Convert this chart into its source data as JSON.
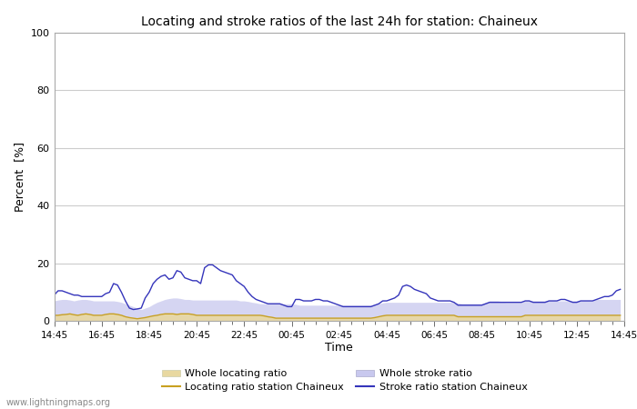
{
  "title": "Locating and stroke ratios of the last 24h for station: Chaineux",
  "xlabel": "Time",
  "ylabel": "Percent  [%]",
  "ylim": [
    0,
    100
  ],
  "yticks": [
    0,
    20,
    40,
    60,
    80,
    100
  ],
  "xtick_labels": [
    "14:45",
    "16:45",
    "18:45",
    "20:45",
    "22:45",
    "00:45",
    "02:45",
    "04:45",
    "06:45",
    "08:45",
    "10:45",
    "12:45",
    "14:45"
  ],
  "watermark": "www.lightningmaps.org",
  "background_color": "#ffffff",
  "grid_color": "#cccccc",
  "whole_locating_fill_color": "#e8d8a0",
  "whole_stroke_fill_color": "#c8c8ee",
  "locating_line_color": "#c8a020",
  "stroke_line_color": "#3535bb",
  "whole_locating": [
    2.0,
    2.0,
    2.2,
    2.3,
    2.5,
    2.2,
    2.0,
    2.3,
    2.5,
    2.3,
    2.0,
    2.0,
    2.0,
    2.3,
    2.5,
    2.5,
    2.3,
    2.0,
    1.5,
    1.2,
    1.0,
    0.8,
    1.0,
    1.2,
    1.5,
    1.8,
    2.0,
    2.3,
    2.5,
    2.5,
    2.5,
    2.3,
    2.5,
    2.5,
    2.5,
    2.3,
    2.0,
    2.0,
    2.0,
    2.0,
    2.0,
    2.0,
    2.0,
    2.0,
    2.0,
    2.0,
    2.0,
    2.0,
    2.0,
    2.0,
    2.0,
    2.0,
    2.0,
    1.8,
    1.5,
    1.3,
    1.0,
    1.0,
    1.0,
    1.0,
    1.0,
    1.0,
    1.0,
    1.0,
    1.0,
    1.0,
    1.0,
    1.0,
    1.0,
    1.0,
    1.0,
    1.0,
    1.0,
    1.0,
    1.0,
    1.0,
    1.0,
    1.0,
    1.0,
    1.0,
    1.0,
    1.2,
    1.5,
    1.8,
    2.0,
    2.0,
    2.0,
    2.0,
    2.0,
    2.0,
    2.0,
    2.0,
    2.0,
    2.0,
    2.0,
    2.0,
    2.0,
    2.0,
    2.0,
    2.0,
    2.0,
    2.0,
    1.5,
    1.5,
    1.5,
    1.5,
    1.5,
    1.5,
    1.5,
    1.5,
    1.5,
    1.5,
    1.5,
    1.5,
    1.5,
    1.5,
    1.5,
    1.5,
    1.5,
    2.0,
    2.0,
    2.0,
    2.0,
    2.0,
    2.0,
    2.0,
    2.0,
    2.0,
    2.0,
    2.0,
    2.0,
    2.0,
    2.0,
    2.0,
    2.0,
    2.0,
    2.0,
    2.0,
    2.0,
    2.0,
    2.0,
    2.0,
    2.0,
    2.0
  ],
  "whole_stroke": [
    7.0,
    7.3,
    7.5,
    7.5,
    7.3,
    7.0,
    7.3,
    7.5,
    7.5,
    7.3,
    7.0,
    7.0,
    7.0,
    7.0,
    7.0,
    7.0,
    6.8,
    6.5,
    6.0,
    5.5,
    5.0,
    4.5,
    4.0,
    4.5,
    5.0,
    5.8,
    6.5,
    7.0,
    7.5,
    7.8,
    8.0,
    8.0,
    7.8,
    7.5,
    7.5,
    7.3,
    7.3,
    7.3,
    7.3,
    7.3,
    7.3,
    7.3,
    7.3,
    7.3,
    7.3,
    7.3,
    7.3,
    7.0,
    7.0,
    6.8,
    6.5,
    6.3,
    6.0,
    6.0,
    6.0,
    6.0,
    6.0,
    6.0,
    6.0,
    6.0,
    6.0,
    5.8,
    5.5,
    5.5,
    5.5,
    5.5,
    5.5,
    5.5,
    5.5,
    5.5,
    5.5,
    5.5,
    5.5,
    5.5,
    5.5,
    5.5,
    5.5,
    5.5,
    5.5,
    5.5,
    5.5,
    5.8,
    6.0,
    6.3,
    6.5,
    6.5,
    6.5,
    6.5,
    6.5,
    6.5,
    6.5,
    6.5,
    6.5,
    6.5,
    6.5,
    6.5,
    6.5,
    6.5,
    6.5,
    6.5,
    6.5,
    6.5,
    6.3,
    6.0,
    6.0,
    6.0,
    6.0,
    6.0,
    6.0,
    6.5,
    7.0,
    7.0,
    7.0,
    6.8,
    6.5,
    6.5,
    6.5,
    6.5,
    6.5,
    7.0,
    7.0,
    7.0,
    7.0,
    7.0,
    7.0,
    7.0,
    7.0,
    7.0,
    7.0,
    7.0,
    7.0,
    7.0,
    7.0,
    7.0,
    7.0,
    7.0,
    7.0,
    7.5,
    7.5,
    7.5,
    7.5,
    7.5,
    7.5,
    7.5
  ],
  "locating_station": [
    2.0,
    2.0,
    2.2,
    2.3,
    2.5,
    2.2,
    2.0,
    2.3,
    2.5,
    2.3,
    2.0,
    2.0,
    2.0,
    2.3,
    2.5,
    2.5,
    2.3,
    2.0,
    1.5,
    1.2,
    1.0,
    0.8,
    1.0,
    1.2,
    1.5,
    1.8,
    2.0,
    2.3,
    2.5,
    2.5,
    2.5,
    2.3,
    2.5,
    2.5,
    2.5,
    2.3,
    2.0,
    2.0,
    2.0,
    2.0,
    2.0,
    2.0,
    2.0,
    2.0,
    2.0,
    2.0,
    2.0,
    2.0,
    2.0,
    2.0,
    2.0,
    2.0,
    2.0,
    1.8,
    1.5,
    1.3,
    1.0,
    1.0,
    1.0,
    1.0,
    1.0,
    1.0,
    1.0,
    1.0,
    1.0,
    1.0,
    1.0,
    1.0,
    1.0,
    1.0,
    1.0,
    1.0,
    1.0,
    1.0,
    1.0,
    1.0,
    1.0,
    1.0,
    1.0,
    1.0,
    1.0,
    1.2,
    1.5,
    1.8,
    2.0,
    2.0,
    2.0,
    2.0,
    2.0,
    2.0,
    2.0,
    2.0,
    2.0,
    2.0,
    2.0,
    2.0,
    2.0,
    2.0,
    2.0,
    2.0,
    2.0,
    2.0,
    1.5,
    1.5,
    1.5,
    1.5,
    1.5,
    1.5,
    1.5,
    1.5,
    1.5,
    1.5,
    1.5,
    1.5,
    1.5,
    1.5,
    1.5,
    1.5,
    1.5,
    2.0,
    2.0,
    2.0,
    2.0,
    2.0,
    2.0,
    2.0,
    2.0,
    2.0,
    2.0,
    2.0,
    2.0,
    2.0,
    2.0,
    2.0,
    2.0,
    2.0,
    2.0,
    2.0,
    2.0,
    2.0,
    2.0,
    2.0,
    2.0,
    2.0
  ],
  "stroke_station": [
    9.0,
    10.5,
    10.5,
    10.0,
    9.5,
    9.0,
    9.0,
    8.5,
    8.5,
    8.5,
    8.5,
    8.5,
    8.5,
    9.5,
    10.0,
    13.0,
    12.5,
    10.0,
    7.0,
    4.5,
    4.0,
    4.2,
    4.5,
    8.0,
    10.0,
    13.0,
    14.5,
    15.5,
    16.0,
    14.5,
    15.0,
    17.5,
    17.0,
    15.0,
    14.5,
    14.0,
    14.0,
    13.0,
    18.5,
    19.5,
    19.5,
    18.5,
    17.5,
    17.0,
    16.5,
    16.0,
    14.0,
    13.0,
    12.0,
    10.0,
    8.5,
    7.5,
    7.0,
    6.5,
    6.0,
    6.0,
    6.0,
    6.0,
    5.5,
    5.0,
    5.0,
    7.5,
    7.5,
    7.0,
    7.0,
    7.0,
    7.5,
    7.5,
    7.0,
    7.0,
    6.5,
    6.0,
    5.5,
    5.0,
    5.0,
    5.0,
    5.0,
    5.0,
    5.0,
    5.0,
    5.0,
    5.5,
    6.0,
    7.0,
    7.0,
    7.5,
    8.0,
    9.0,
    12.0,
    12.5,
    12.0,
    11.0,
    10.5,
    10.0,
    9.5,
    8.0,
    7.5,
    7.0,
    7.0,
    7.0,
    7.0,
    6.5,
    5.5,
    5.5,
    5.5,
    5.5,
    5.5,
    5.5,
    5.5,
    6.0,
    6.5,
    6.5,
    6.5,
    6.5,
    6.5,
    6.5,
    6.5,
    6.5,
    6.5,
    7.0,
    7.0,
    6.5,
    6.5,
    6.5,
    6.5,
    7.0,
    7.0,
    7.0,
    7.5,
    7.5,
    7.0,
    6.5,
    6.5,
    7.0,
    7.0,
    7.0,
    7.0,
    7.5,
    8.0,
    8.5,
    8.5,
    9.0,
    10.5,
    11.0
  ]
}
